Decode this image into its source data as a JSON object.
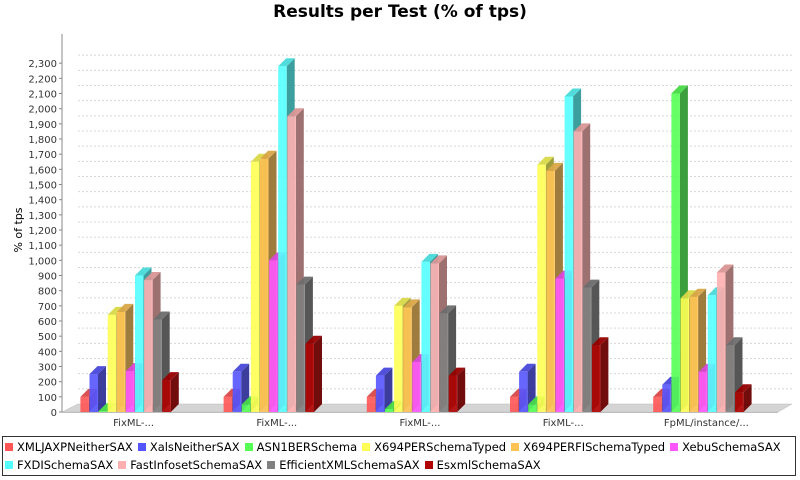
{
  "chart_data": {
    "type": "bar",
    "title": "Results per Test (% of tps)",
    "xlabel": "",
    "ylabel": "% of tps",
    "ylim": [
      0,
      2400
    ],
    "ytick_step": 100,
    "grid": true,
    "legend_position": "bottom",
    "categories": [
      "FixML-...",
      "FixML-...",
      "FixML-...",
      "FixML-...",
      "FpML/instance/..."
    ],
    "series": [
      {
        "name": "XMLJAXPNeitherSAX",
        "color": "#ff5555",
        "values": [
          100,
          100,
          100,
          100,
          100
        ]
      },
      {
        "name": "XalsNeitherSAX",
        "color": "#5555ff",
        "values": [
          250,
          265,
          240,
          265,
          180
        ]
      },
      {
        "name": "ASN1BERSchema",
        "color": "#55ff55",
        "values": [
          5,
          50,
          20,
          50,
          2100
        ]
      },
      {
        "name": "X694PERSchemaTyped",
        "color": "#ffff55",
        "values": [
          640,
          1650,
          700,
          1630,
          750
        ]
      },
      {
        "name": "X694PERFISchemaTyped",
        "color": "#ffc355",
        "values": [
          660,
          1670,
          690,
          1590,
          760
        ]
      },
      {
        "name": "XebuSchemaSAX",
        "color": "#ff55ff",
        "values": [
          270,
          1000,
          330,
          880,
          265
        ]
      },
      {
        "name": "FXDISchemaSAX",
        "color": "#55ffff",
        "values": [
          900,
          2280,
          990,
          2080,
          770
        ]
      },
      {
        "name": "FastInfosetSchemaSAX",
        "color": "#ffafaf",
        "values": [
          870,
          1950,
          980,
          1850,
          920
        ]
      },
      {
        "name": "EfficientXMLSchemaSAX",
        "color": "#808080",
        "values": [
          610,
          840,
          650,
          820,
          440
        ]
      },
      {
        "name": "EsxmlSchemaSAX",
        "color": "#b00000",
        "values": [
          210,
          450,
          240,
          440,
          130
        ]
      }
    ]
  }
}
